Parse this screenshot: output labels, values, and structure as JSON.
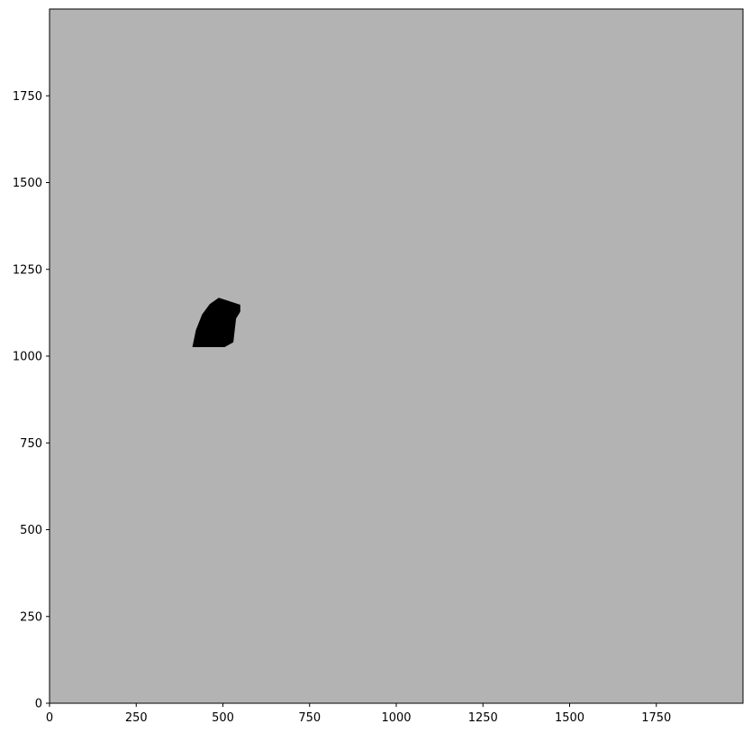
{
  "chart_data": {
    "type": "heatmap",
    "title": "",
    "xlabel": "",
    "ylabel": "",
    "xlim": [
      0,
      2000
    ],
    "ylim": [
      0,
      2000
    ],
    "grid": false,
    "x_ticks": [
      0,
      250,
      500,
      750,
      1000,
      1250,
      1500,
      1750
    ],
    "y_ticks": [
      0,
      250,
      500,
      750,
      1000,
      1250,
      1500,
      1750
    ],
    "x_tick_labels": [
      "0",
      "250",
      "500",
      "750",
      "1000",
      "1250",
      "1500",
      "1750"
    ],
    "y_tick_labels": [
      "0",
      "250",
      "500",
      "750",
      "1000",
      "1250",
      "1500",
      "1750"
    ],
    "background_value_color": "#b3b3b3",
    "region_color": "#000000",
    "region_polygon": [
      [
        412,
        1026
      ],
      [
        422,
        1075
      ],
      [
        440,
        1120
      ],
      [
        462,
        1150
      ],
      [
        488,
        1168
      ],
      [
        520,
        1158
      ],
      [
        550,
        1148
      ],
      [
        550,
        1128
      ],
      [
        538,
        1108
      ],
      [
        530,
        1040
      ],
      [
        505,
        1026
      ]
    ]
  }
}
